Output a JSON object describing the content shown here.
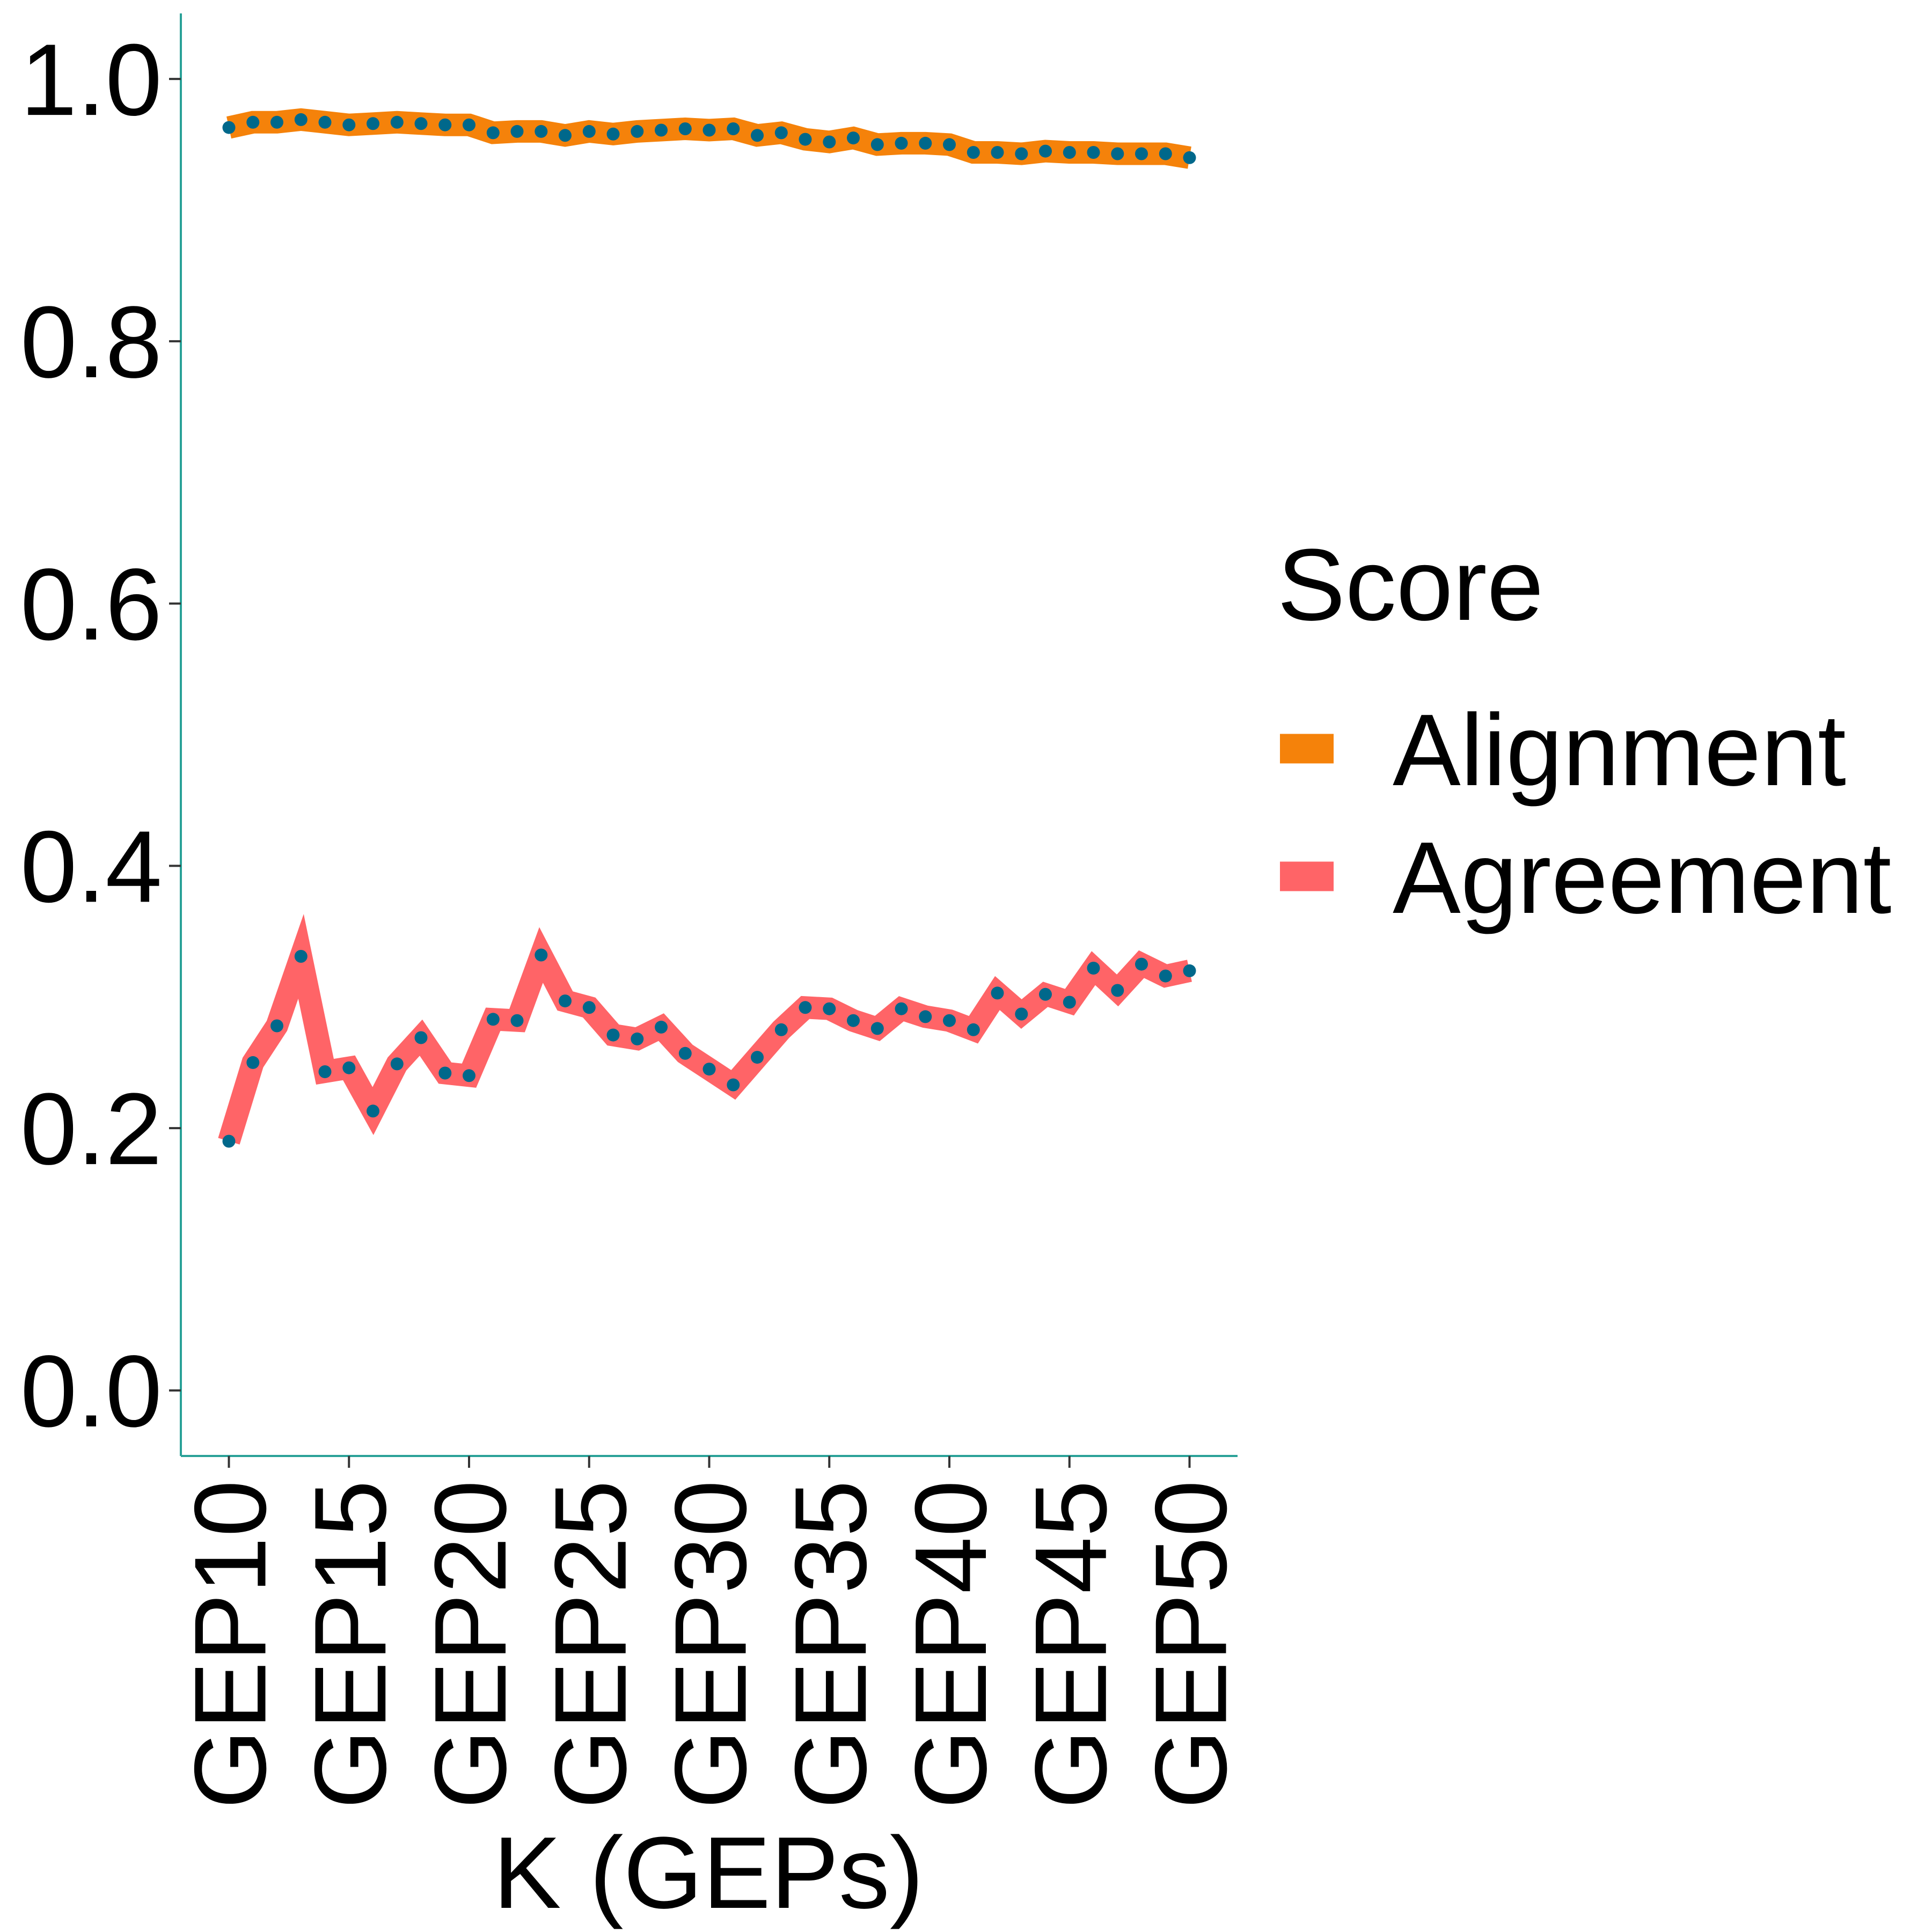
{
  "chart_data": {
    "type": "line",
    "xlabel": "K (GEPs)",
    "ylabel": "",
    "ylim": [
      -0.05,
      1.05
    ],
    "yticks": [
      0.0,
      0.2,
      0.4,
      0.6,
      0.8,
      1.0
    ],
    "ytick_labels": [
      "0.0",
      "0.2",
      "0.4",
      "0.6",
      "0.8",
      "1.0"
    ],
    "x": [
      10,
      11,
      12,
      13,
      14,
      15,
      16,
      17,
      18,
      19,
      20,
      21,
      22,
      23,
      24,
      25,
      26,
      27,
      28,
      29,
      30,
      31,
      32,
      33,
      34,
      35,
      36,
      37,
      38,
      39,
      40,
      41,
      42,
      43,
      44,
      45,
      46,
      47,
      48,
      49,
      50
    ],
    "xlim": [
      8,
      52
    ],
    "xticks": [
      10,
      15,
      20,
      25,
      30,
      35,
      40,
      45,
      50
    ],
    "xtick_labels": [
      "GEP10",
      "GEP15",
      "GEP20",
      "GEP25",
      "GEP30",
      "GEP35",
      "GEP40",
      "GEP45",
      "GEP50"
    ],
    "grid": false,
    "legend": {
      "title": "Score",
      "position": "right",
      "entries": [
        {
          "label": "Alignment",
          "color": "#F5820A"
        },
        {
          "label": "Agreement",
          "color": "#FF6467"
        }
      ]
    },
    "point_color": "#00688B",
    "axis_color": "#2AA198",
    "series": [
      {
        "name": "Alignment",
        "color": "#F5820A",
        "values": [
          0.963,
          0.967,
          0.967,
          0.969,
          0.967,
          0.965,
          0.966,
          0.967,
          0.966,
          0.965,
          0.965,
          0.959,
          0.96,
          0.96,
          0.957,
          0.96,
          0.958,
          0.96,
          0.961,
          0.962,
          0.961,
          0.962,
          0.957,
          0.959,
          0.954,
          0.952,
          0.955,
          0.95,
          0.951,
          0.951,
          0.95,
          0.944,
          0.944,
          0.943,
          0.945,
          0.944,
          0.944,
          0.943,
          0.943,
          0.943,
          0.94
        ]
      },
      {
        "name": "Agreement",
        "color": "#FF6467",
        "values": [
          0.19,
          0.25,
          0.278,
          0.331,
          0.243,
          0.246,
          0.213,
          0.249,
          0.269,
          0.242,
          0.24,
          0.283,
          0.282,
          0.332,
          0.297,
          0.292,
          0.271,
          0.268,
          0.277,
          0.257,
          0.245,
          0.233,
          0.254,
          0.275,
          0.292,
          0.291,
          0.282,
          0.276,
          0.291,
          0.285,
          0.282,
          0.275,
          0.303,
          0.287,
          0.302,
          0.296,
          0.322,
          0.305,
          0.325,
          0.316,
          0.32
        ]
      }
    ]
  }
}
